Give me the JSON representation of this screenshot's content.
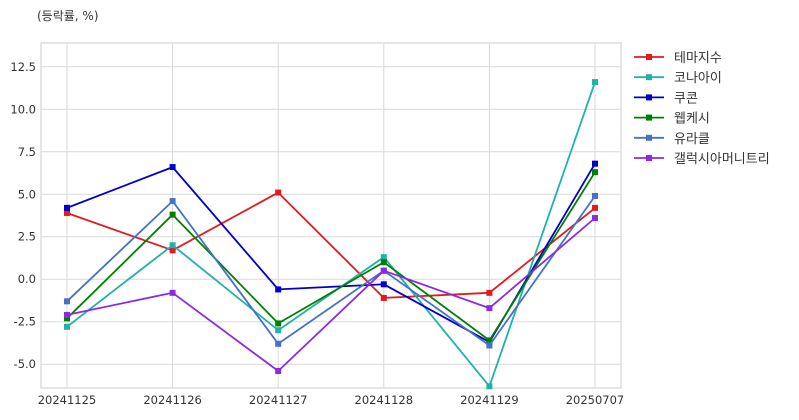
{
  "chart_data": {
    "type": "line",
    "title": "",
    "unit_label": "(등락률, %)",
    "xlabel": "",
    "ylabel": "",
    "categories": [
      "20241125",
      "20241126",
      "20241127",
      "20241128",
      "20241129",
      "20250707"
    ],
    "ylim": [
      -6.4,
      13.9
    ],
    "yticks": [
      -5.0,
      -2.5,
      0.0,
      2.5,
      5.0,
      7.5,
      10.0,
      12.5
    ],
    "ytick_labels": [
      "-5.0",
      "-2.5",
      "0.0",
      "2.5",
      "5.0",
      "7.5",
      "10.0",
      "12.5"
    ],
    "grid": true,
    "legend": "right-outside-top",
    "series": [
      {
        "name": "테마지수",
        "color": "#e31a1c",
        "values": [
          3.9,
          1.7,
          5.1,
          -1.1,
          -0.8,
          4.2
        ]
      },
      {
        "name": "코나아이",
        "color": "#20b2aa",
        "values": [
          -2.8,
          2.0,
          -3.0,
          1.3,
          -6.3,
          11.6
        ]
      },
      {
        "name": "쿠콘",
        "color": "#0000cd",
        "values": [
          4.2,
          6.6,
          -0.6,
          -0.3,
          -3.7,
          6.8
        ]
      },
      {
        "name": "웹케시",
        "color": "#008000",
        "values": [
          -2.3,
          3.8,
          -2.6,
          1.0,
          -3.6,
          6.3
        ]
      },
      {
        "name": "유라클",
        "color": "#4472c4",
        "values": [
          -1.3,
          4.6,
          -3.8,
          0.5,
          -3.9,
          4.9
        ]
      },
      {
        "name": "갤럭시아머니트리",
        "color": "#8a2be2",
        "values": [
          -2.1,
          -0.8,
          -5.4,
          0.5,
          -1.7,
          3.6
        ]
      }
    ]
  }
}
